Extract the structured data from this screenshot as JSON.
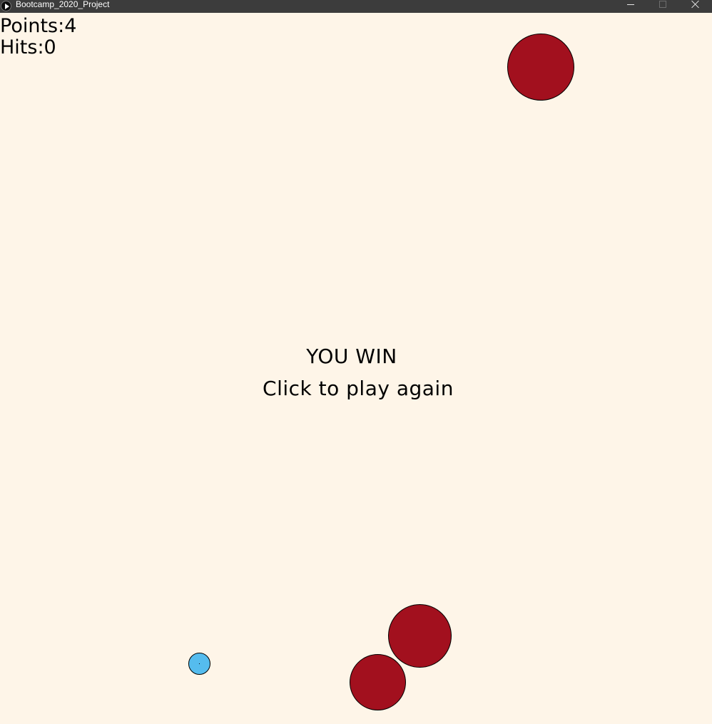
{
  "window": {
    "title": "Bootcamp_2020_Project",
    "icon": "play-icon"
  },
  "hud": {
    "points_label": "Points:4",
    "hits_label": "Hits:0"
  },
  "message": {
    "win": "YOU WIN",
    "restart": "Click to play again"
  },
  "colors": {
    "background": "#fef5e8",
    "enemy": "#a2101e",
    "player": "#55bcee"
  }
}
